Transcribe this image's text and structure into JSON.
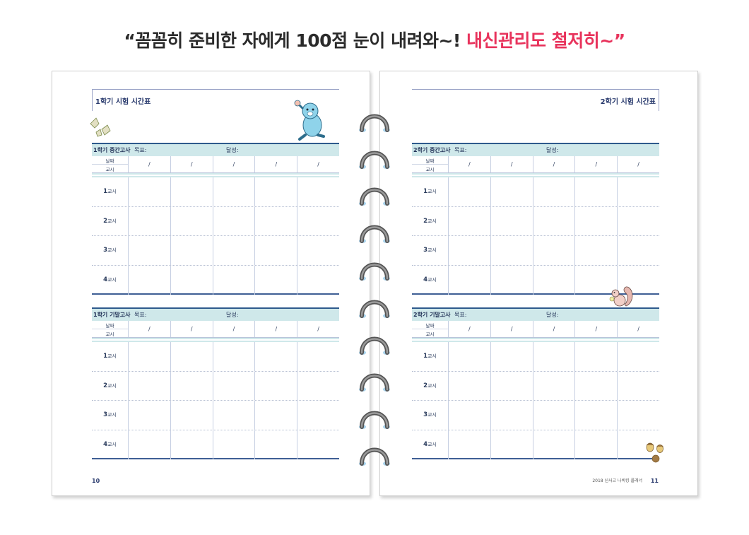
{
  "headline": {
    "main": "“꼼꼼히 준비한 자에게 100점 눈이 내려와~!",
    "accent": "내신관리도 철저히~”"
  },
  "left_page": {
    "title": "1학기 시험 시간표",
    "page_number": "10",
    "exams": [
      {
        "name": "1학기 중간고사",
        "goal_label": "목표:",
        "achieved_label": "달성:",
        "date_label": "날짜",
        "period_label": "교시",
        "date_slots": [
          "/",
          "/",
          "/",
          "/",
          "/"
        ],
        "periods": [
          {
            "num": "1",
            "unit": "교시"
          },
          {
            "num": "2",
            "unit": "교시"
          },
          {
            "num": "3",
            "unit": "교시"
          },
          {
            "num": "4",
            "unit": "교시"
          }
        ]
      },
      {
        "name": "1학기 기말고사",
        "goal_label": "목표:",
        "achieved_label": "달성:",
        "date_label": "날짜",
        "period_label": "교시",
        "date_slots": [
          "/",
          "/",
          "/",
          "/",
          "/"
        ],
        "periods": [
          {
            "num": "1",
            "unit": "교시"
          },
          {
            "num": "2",
            "unit": "교시"
          },
          {
            "num": "3",
            "unit": "교시"
          },
          {
            "num": "4",
            "unit": "교시"
          }
        ]
      }
    ]
  },
  "right_page": {
    "title": "2학기 시험 시간표",
    "page_number": "11",
    "footer_note": "2018 신사고 나비킹 플래너",
    "exams": [
      {
        "name": "2학기 중간고사",
        "goal_label": "목표:",
        "achieved_label": "달성:",
        "date_label": "날짜",
        "period_label": "교시",
        "date_slots": [
          "/",
          "/",
          "/",
          "/",
          "/"
        ],
        "periods": [
          {
            "num": "1",
            "unit": "교시"
          },
          {
            "num": "2",
            "unit": "교시"
          },
          {
            "num": "3",
            "unit": "교시"
          },
          {
            "num": "4",
            "unit": "교시"
          }
        ]
      },
      {
        "name": "2학기 기말고사",
        "goal_label": "목표:",
        "achieved_label": "달성:",
        "date_label": "날짜",
        "period_label": "교시",
        "date_slots": [
          "/",
          "/",
          "/",
          "/",
          "/"
        ],
        "periods": [
          {
            "num": "1",
            "unit": "교시"
          },
          {
            "num": "2",
            "unit": "교시"
          },
          {
            "num": "3",
            "unit": "교시"
          },
          {
            "num": "4",
            "unit": "교시"
          }
        ]
      }
    ]
  },
  "colors": {
    "accent": "#e8335c",
    "header_fill": "#cfe8ea",
    "rule_blue": "#2e5a8c",
    "ring": "#6d6d6d"
  },
  "icons": [
    "seal-mascot-icon",
    "leaf-icon",
    "squirrel-icon",
    "acorn-icon",
    "binder-ring-icon"
  ]
}
